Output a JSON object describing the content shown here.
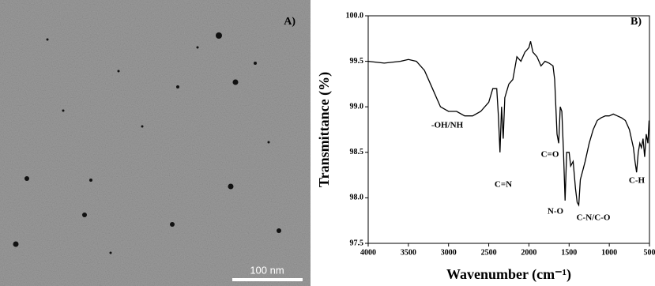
{
  "image_panel": {
    "label": "A)",
    "scale_bar": "100 nm"
  },
  "chart_data": {
    "type": "line",
    "panel_label": "B)",
    "x_label": "Wavenumber (cm⁻¹)",
    "y_label": "Transmittance (%)",
    "xlim": [
      4000,
      500
    ],
    "ylim": [
      97.5,
      100.0
    ],
    "xticks": [
      4000,
      3500,
      3000,
      2500,
      2000,
      1500,
      1000,
      500
    ],
    "yticks": [
      97.5,
      {
        "value": 98,
        "label": "98.0"
      },
      98.5,
      {
        "value": 99,
        "label": "99.0"
      },
      99.5,
      {
        "value": 100,
        "label": "100.0"
      }
    ],
    "color": "#000000",
    "annotations": [
      "-OH/NH",
      "C=N",
      "C=O",
      "N-O",
      "C-N/C-O",
      "C-H"
    ],
    "x": [
      4000,
      3800,
      3600,
      3500,
      3400,
      3300,
      3200,
      3100,
      3000,
      2900,
      2800,
      2700,
      2600,
      2500,
      2450,
      2400,
      2380,
      2360,
      2340,
      2320,
      2300,
      2250,
      2200,
      2150,
      2100,
      2050,
      2000,
      1980,
      1950,
      1900,
      1850,
      1800,
      1750,
      1700,
      1680,
      1650,
      1630,
      1610,
      1590,
      1570,
      1550,
      1530,
      1500,
      1480,
      1450,
      1420,
      1400,
      1380,
      1360,
      1330,
      1300,
      1250,
      1200,
      1150,
      1100,
      1050,
      1000,
      950,
      900,
      850,
      800,
      750,
      700,
      680,
      660,
      640,
      620,
      600,
      580,
      560,
      540,
      520,
      505
    ],
    "values": [
      99.5,
      99.48,
      99.5,
      99.52,
      99.5,
      99.4,
      99.2,
      99.0,
      98.95,
      98.95,
      98.9,
      98.9,
      98.95,
      99.05,
      99.2,
      99.2,
      98.9,
      98.5,
      99.0,
      98.65,
      99.1,
      99.25,
      99.3,
      99.55,
      99.5,
      99.6,
      99.65,
      99.72,
      99.6,
      99.55,
      99.45,
      99.5,
      99.48,
      99.45,
      99.3,
      98.7,
      98.6,
      99.0,
      98.95,
      98.5,
      97.97,
      98.5,
      98.5,
      98.35,
      98.4,
      98.1,
      97.95,
      97.92,
      98.2,
      98.3,
      98.4,
      98.6,
      98.75,
      98.85,
      98.88,
      98.9,
      98.9,
      98.92,
      98.9,
      98.88,
      98.85,
      98.75,
      98.55,
      98.4,
      98.28,
      98.5,
      98.6,
      98.55,
      98.65,
      98.45,
      98.7,
      98.6,
      98.85
    ]
  }
}
